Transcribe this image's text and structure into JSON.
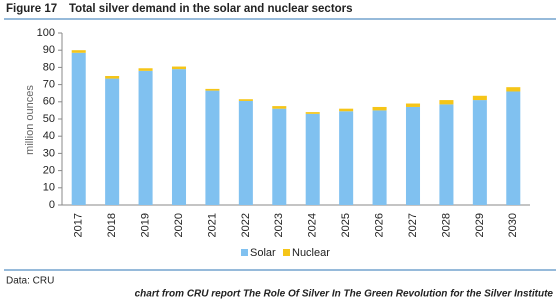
{
  "chart_data": {
    "type": "stacked-bar",
    "figure_label": "Figure 17",
    "title": "Total silver demand in the solar and nuclear sectors",
    "y_label": "million ounces",
    "categories": [
      "2017",
      "2018",
      "2019",
      "2020",
      "2021",
      "2022",
      "2023",
      "2024",
      "2025",
      "2026",
      "2027",
      "2028",
      "2029",
      "2030"
    ],
    "series": [
      {
        "name": "Solar",
        "color": "#80c1f0",
        "values": [
          88.5,
          73.5,
          78,
          79,
          66.5,
          60.5,
          56,
          53,
          54.5,
          55,
          57,
          58.5,
          61,
          66
        ]
      },
      {
        "name": "Nuclear",
        "color": "#f5c518",
        "values": [
          1.5,
          1.5,
          1.5,
          1.5,
          1,
          1,
          1.5,
          1,
          1.5,
          2,
          2,
          2.5,
          2.5,
          2.5
        ]
      }
    ],
    "ylim": [
      0,
      100
    ],
    "yticks": [
      0,
      10,
      20,
      30,
      40,
      50,
      60,
      70,
      80,
      90,
      100
    ],
    "grid": false,
    "legend": "bottom",
    "source": "Data: CRU",
    "note": "chart from CRU report The Role Of Silver In The Green Revolution for the Silver Institute"
  }
}
